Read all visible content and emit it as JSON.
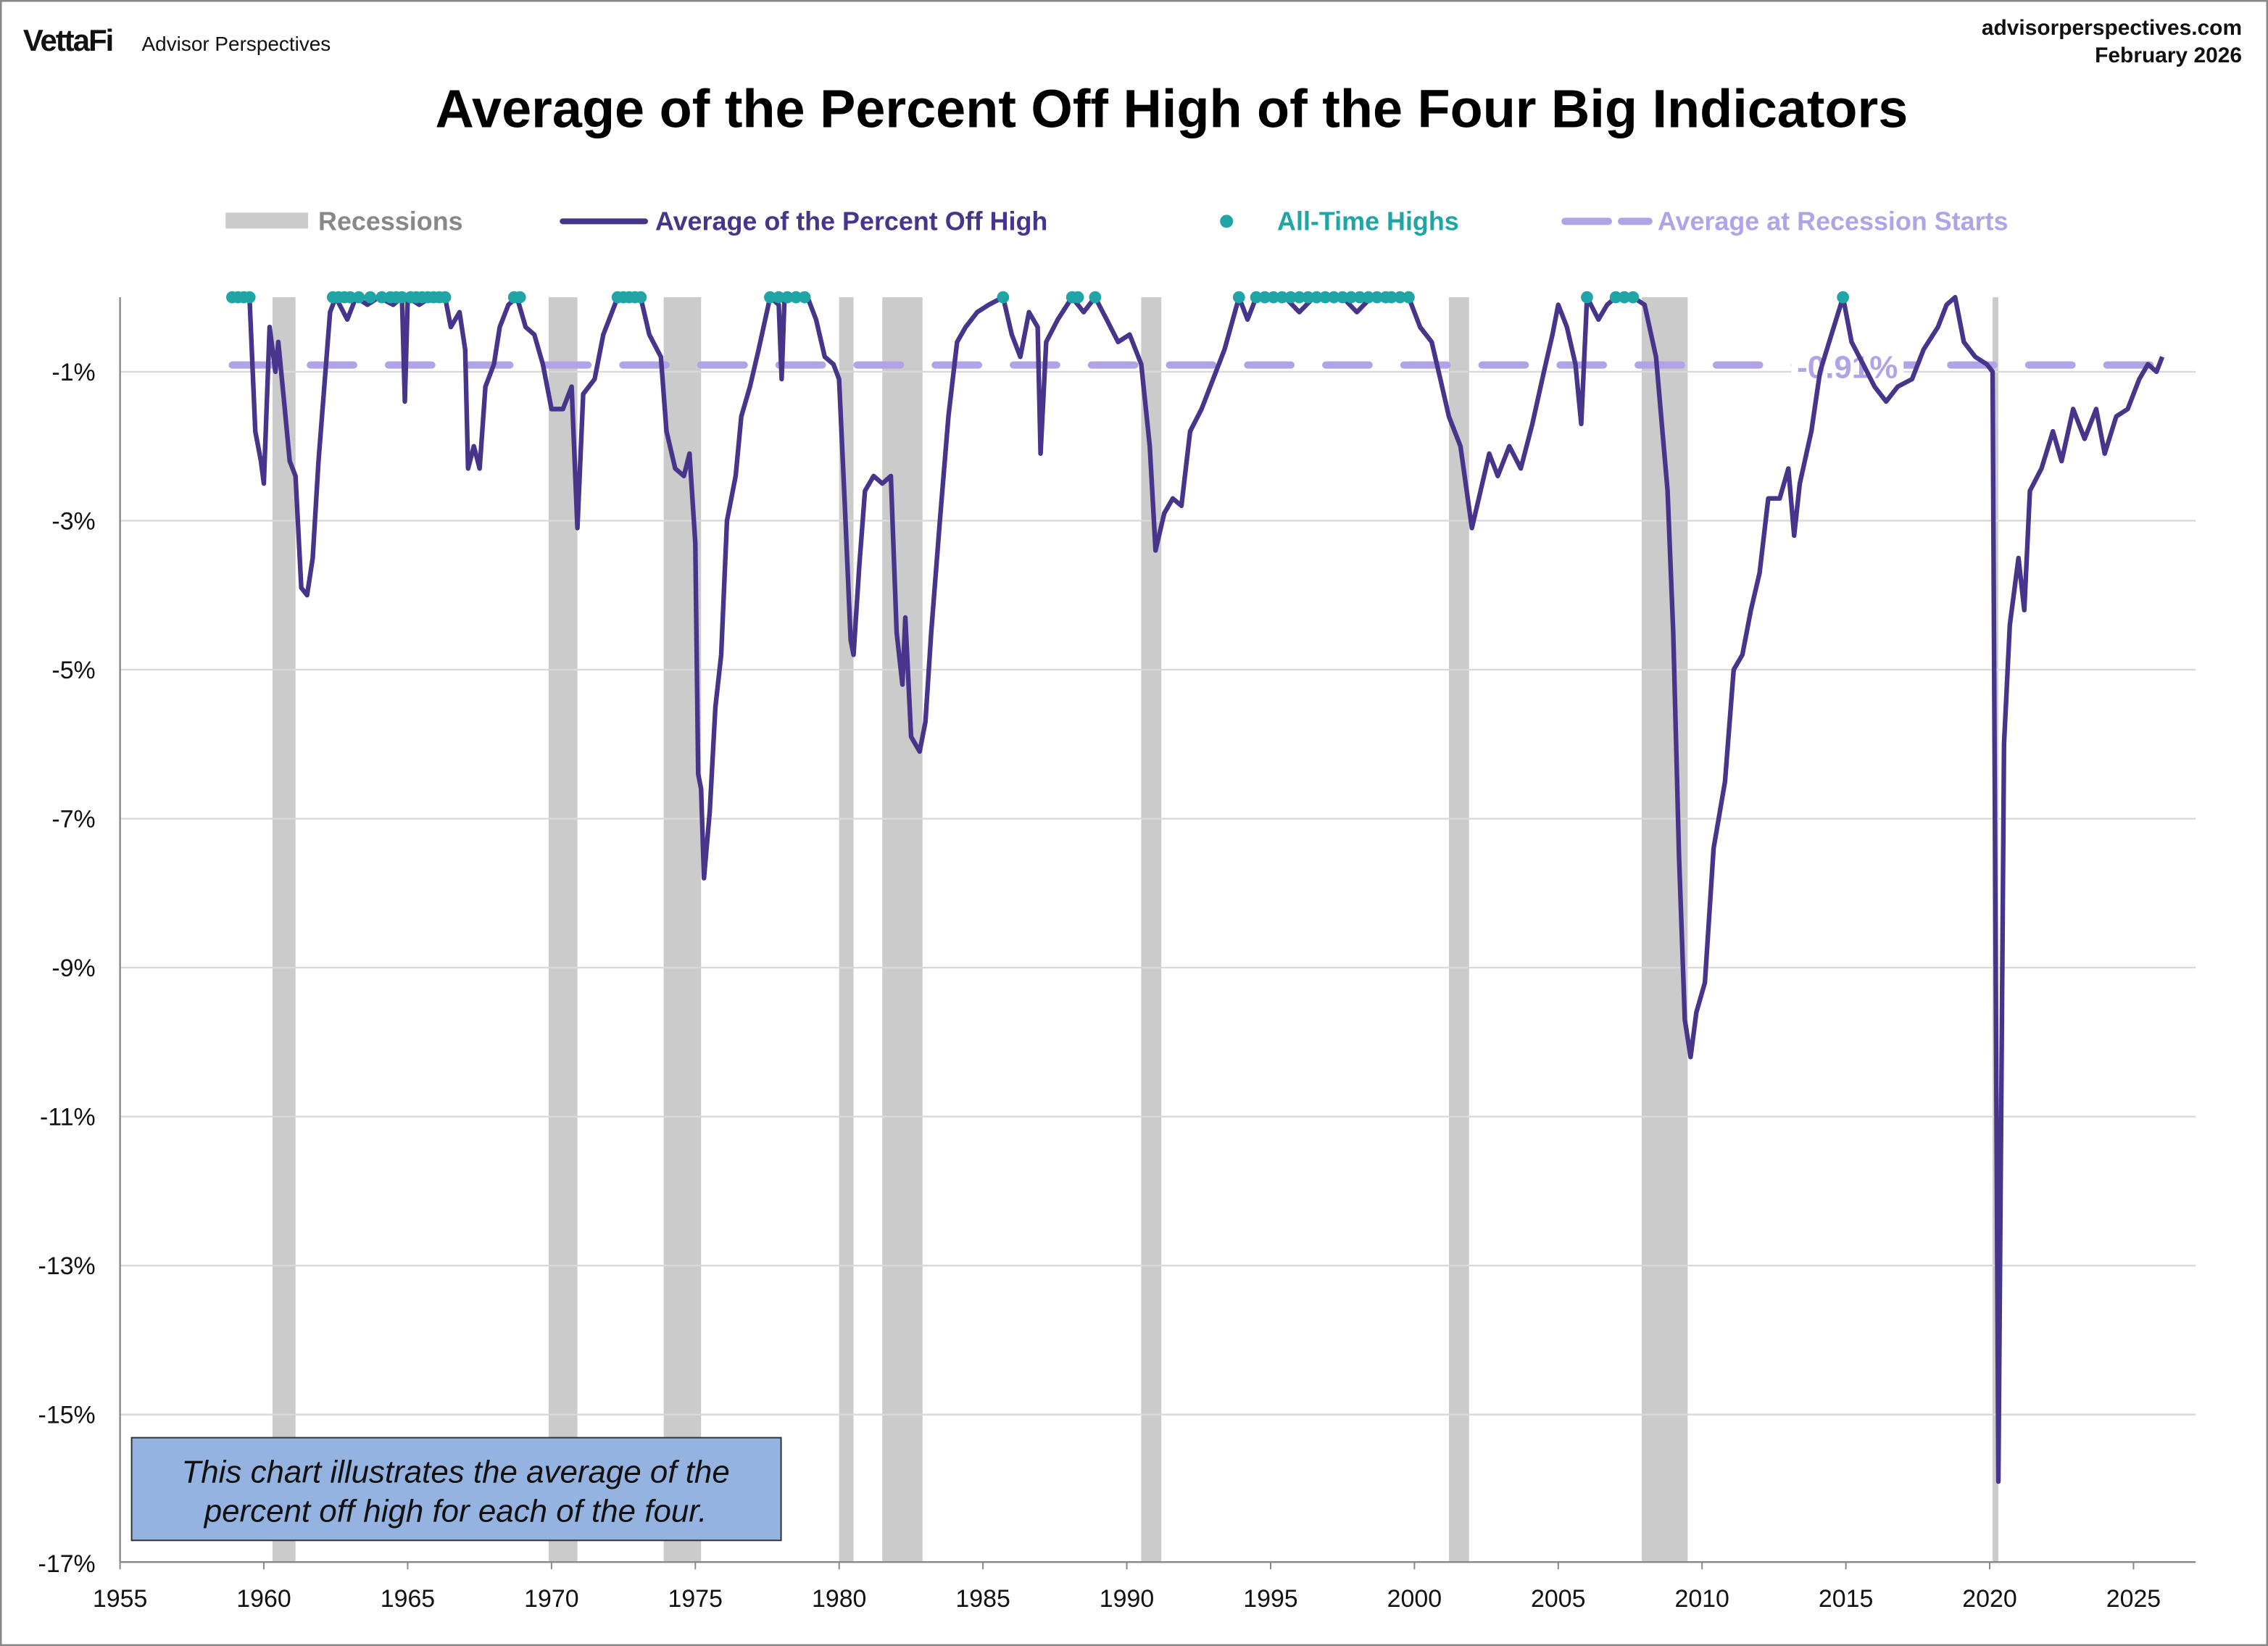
{
  "header": {
    "logo": "VettaFi",
    "brand": "Advisor Perspectives",
    "site": "advisorperspectives.com",
    "date": "February 2026"
  },
  "note": {
    "line1": "This chart illustrates the average of the",
    "line2": "percent off high for each of the four."
  },
  "chart_data": {
    "type": "line",
    "title": "Average of the Percent Off High of the Four Big Indicators",
    "xlabel": "",
    "ylabel": "",
    "xlim": [
      1955,
      2027.2
    ],
    "ylim": [
      -17,
      0
    ],
    "x_ticks": [
      "1955",
      "1960",
      "1965",
      "1970",
      "1975",
      "1980",
      "1985",
      "1990",
      "1995",
      "2000",
      "2005",
      "2010",
      "2015",
      "2020",
      "2025"
    ],
    "y_ticks": [
      "-1%",
      "-3%",
      "-5%",
      "-7%",
      "-9%",
      "-11%",
      "-13%",
      "-15%",
      "-17%"
    ],
    "grid": true,
    "legend_position": "top",
    "legend": {
      "recessions": "Recessions",
      "line": "Average of the Percent Off High",
      "ath": "All-Time Highs",
      "avg": "Average at Recession Starts"
    },
    "colors": {
      "line": "#46358a",
      "ath": "#1fa5a5",
      "avg": "#b0a4e6",
      "recession": "#cbcbcb",
      "note_bg": "#95b3e0"
    },
    "recessions": [
      [
        1960.3,
        1961.1
      ],
      [
        1969.9,
        1970.9
      ],
      [
        1973.9,
        1975.2
      ],
      [
        1980.0,
        1980.5
      ],
      [
        1981.5,
        1982.9
      ],
      [
        1990.5,
        1991.2
      ],
      [
        2001.2,
        2001.9
      ],
      [
        2007.9,
        2009.5
      ],
      [
        2020.1,
        2020.3
      ]
    ],
    "average_at_recession_starts": -0.91,
    "average_label": "-0.91%",
    "series": [
      {
        "name": "Average of the Percent Off High",
        "points": [
          [
            1958.9,
            0
          ],
          [
            1959.5,
            0
          ],
          [
            1959.7,
            -1.8
          ],
          [
            1959.9,
            -2.2
          ],
          [
            1960.0,
            -2.5
          ],
          [
            1960.2,
            -0.4
          ],
          [
            1960.4,
            -1.0
          ],
          [
            1960.5,
            -0.6
          ],
          [
            1960.7,
            -1.4
          ],
          [
            1960.9,
            -2.2
          ],
          [
            1961.1,
            -2.4
          ],
          [
            1961.3,
            -3.9
          ],
          [
            1961.5,
            -4.0
          ],
          [
            1961.7,
            -3.5
          ],
          [
            1961.9,
            -2.2
          ],
          [
            1962.1,
            -1.2
          ],
          [
            1962.3,
            -0.2
          ],
          [
            1962.5,
            0
          ],
          [
            1962.9,
            -0.3
          ],
          [
            1963.2,
            0
          ],
          [
            1963.6,
            -0.1
          ],
          [
            1964.0,
            0
          ],
          [
            1964.5,
            -0.1
          ],
          [
            1964.8,
            0
          ],
          [
            1964.9,
            -1.4
          ],
          [
            1965.0,
            0
          ],
          [
            1965.4,
            -0.1
          ],
          [
            1965.8,
            0
          ],
          [
            1966.3,
            0
          ],
          [
            1966.5,
            -0.4
          ],
          [
            1966.8,
            -0.2
          ],
          [
            1967.0,
            -0.7
          ],
          [
            1967.1,
            -2.3
          ],
          [
            1967.3,
            -2.0
          ],
          [
            1967.5,
            -2.3
          ],
          [
            1967.7,
            -1.2
          ],
          [
            1968.0,
            -0.9
          ],
          [
            1968.2,
            -0.4
          ],
          [
            1968.5,
            -0.1
          ],
          [
            1968.8,
            0
          ],
          [
            1969.1,
            -0.4
          ],
          [
            1969.4,
            -0.5
          ],
          [
            1969.7,
            -0.9
          ],
          [
            1970.0,
            -1.5
          ],
          [
            1970.4,
            -1.5
          ],
          [
            1970.7,
            -1.2
          ],
          [
            1970.9,
            -3.1
          ],
          [
            1971.1,
            -1.3
          ],
          [
            1971.5,
            -1.1
          ],
          [
            1971.8,
            -0.5
          ],
          [
            1972.1,
            -0.2
          ],
          [
            1972.3,
            0
          ],
          [
            1973.1,
            0
          ],
          [
            1973.4,
            -0.5
          ],
          [
            1973.8,
            -0.8
          ],
          [
            1974.0,
            -1.8
          ],
          [
            1974.3,
            -2.3
          ],
          [
            1974.6,
            -2.4
          ],
          [
            1974.8,
            -2.1
          ],
          [
            1975.0,
            -3.3
          ],
          [
            1975.1,
            -6.4
          ],
          [
            1975.2,
            -6.6
          ],
          [
            1975.3,
            -7.8
          ],
          [
            1975.5,
            -6.9
          ],
          [
            1975.7,
            -5.5
          ],
          [
            1975.9,
            -4.8
          ],
          [
            1976.1,
            -3.0
          ],
          [
            1976.4,
            -2.4
          ],
          [
            1976.6,
            -1.6
          ],
          [
            1976.9,
            -1.2
          ],
          [
            1977.2,
            -0.7
          ],
          [
            1977.6,
            0
          ],
          [
            1977.9,
            -0.1
          ],
          [
            1978.0,
            -1.1
          ],
          [
            1978.1,
            0
          ],
          [
            1978.9,
            0
          ],
          [
            1979.2,
            -0.3
          ],
          [
            1979.5,
            -0.8
          ],
          [
            1979.8,
            -0.9
          ],
          [
            1980.0,
            -1.1
          ],
          [
            1980.2,
            -2.8
          ],
          [
            1980.4,
            -4.6
          ],
          [
            1980.5,
            -4.8
          ],
          [
            1980.7,
            -3.6
          ],
          [
            1980.9,
            -2.6
          ],
          [
            1981.2,
            -2.4
          ],
          [
            1981.5,
            -2.5
          ],
          [
            1981.8,
            -2.4
          ],
          [
            1982.0,
            -4.5
          ],
          [
            1982.2,
            -5.2
          ],
          [
            1982.3,
            -4.3
          ],
          [
            1982.5,
            -5.9
          ],
          [
            1982.8,
            -6.1
          ],
          [
            1983.0,
            -5.7
          ],
          [
            1983.2,
            -4.5
          ],
          [
            1983.5,
            -3.0
          ],
          [
            1983.8,
            -1.6
          ],
          [
            1984.1,
            -0.6
          ],
          [
            1984.4,
            -0.4
          ],
          [
            1984.8,
            -0.2
          ],
          [
            1985.2,
            -0.1
          ],
          [
            1985.7,
            0
          ],
          [
            1986.0,
            -0.5
          ],
          [
            1986.3,
            -0.8
          ],
          [
            1986.6,
            -0.2
          ],
          [
            1986.9,
            -0.4
          ],
          [
            1987.0,
            -2.1
          ],
          [
            1987.2,
            -0.6
          ],
          [
            1987.6,
            -0.3
          ],
          [
            1988.1,
            0
          ],
          [
            1988.5,
            -0.2
          ],
          [
            1988.9,
            0
          ],
          [
            1989.3,
            -0.3
          ],
          [
            1989.7,
            -0.6
          ],
          [
            1990.1,
            -0.5
          ],
          [
            1990.5,
            -0.9
          ],
          [
            1990.8,
            -2.0
          ],
          [
            1991.0,
            -3.4
          ],
          [
            1991.3,
            -2.9
          ],
          [
            1991.6,
            -2.7
          ],
          [
            1991.9,
            -2.8
          ],
          [
            1992.2,
            -1.8
          ],
          [
            1992.6,
            -1.5
          ],
          [
            1993.0,
            -1.1
          ],
          [
            1993.4,
            -0.7
          ],
          [
            1993.9,
            0
          ],
          [
            1994.2,
            -0.3
          ],
          [
            1994.5,
            0
          ],
          [
            1995.5,
            0
          ],
          [
            1996.0,
            -0.2
          ],
          [
            1996.5,
            0
          ],
          [
            1997.5,
            0
          ],
          [
            1998.0,
            -0.2
          ],
          [
            1998.5,
            0
          ],
          [
            1999.8,
            0
          ],
          [
            2000.2,
            -0.4
          ],
          [
            2000.6,
            -0.6
          ],
          [
            2000.9,
            -1.1
          ],
          [
            2001.2,
            -1.6
          ],
          [
            2001.6,
            -2.0
          ],
          [
            2002.0,
            -3.1
          ],
          [
            2002.3,
            -2.6
          ],
          [
            2002.6,
            -2.1
          ],
          [
            2002.9,
            -2.4
          ],
          [
            2003.3,
            -2.0
          ],
          [
            2003.7,
            -2.3
          ],
          [
            2004.1,
            -1.7
          ],
          [
            2004.5,
            -1.0
          ],
          [
            2004.8,
            -0.5
          ],
          [
            2005.0,
            -0.1
          ],
          [
            2005.3,
            -0.4
          ],
          [
            2005.6,
            -0.9
          ],
          [
            2005.8,
            -1.7
          ],
          [
            2006.0,
            0
          ],
          [
            2006.4,
            -0.3
          ],
          [
            2006.7,
            -0.1
          ],
          [
            2007.0,
            0
          ],
          [
            2007.6,
            0
          ],
          [
            2008.0,
            -0.1
          ],
          [
            2008.4,
            -0.8
          ],
          [
            2008.8,
            -2.6
          ],
          [
            2009.0,
            -4.5
          ],
          [
            2009.2,
            -7.5
          ],
          [
            2009.4,
            -9.7
          ],
          [
            2009.6,
            -10.2
          ],
          [
            2009.8,
            -9.6
          ],
          [
            2010.1,
            -9.2
          ],
          [
            2010.4,
            -7.4
          ],
          [
            2010.8,
            -6.5
          ],
          [
            2011.1,
            -5.0
          ],
          [
            2011.4,
            -4.8
          ],
          [
            2011.7,
            -4.2
          ],
          [
            2012.0,
            -3.7
          ],
          [
            2012.3,
            -2.7
          ],
          [
            2012.7,
            -2.7
          ],
          [
            2013.0,
            -2.3
          ],
          [
            2013.2,
            -3.2
          ],
          [
            2013.4,
            -2.5
          ],
          [
            2013.8,
            -1.8
          ],
          [
            2014.1,
            -1.0
          ],
          [
            2014.5,
            -0.5
          ],
          [
            2014.9,
            0
          ],
          [
            2015.2,
            -0.6
          ],
          [
            2015.6,
            -0.9
          ],
          [
            2016.0,
            -1.2
          ],
          [
            2016.4,
            -1.4
          ],
          [
            2016.8,
            -1.2
          ],
          [
            2017.3,
            -1.1
          ],
          [
            2017.7,
            -0.7
          ],
          [
            2018.2,
            -0.4
          ],
          [
            2018.5,
            -0.1
          ],
          [
            2018.8,
            0
          ],
          [
            2019.1,
            -0.6
          ],
          [
            2019.5,
            -0.8
          ],
          [
            2019.9,
            -0.9
          ],
          [
            2020.1,
            -1.0
          ],
          [
            2020.3,
            -15.9
          ],
          [
            2020.5,
            -6.0
          ],
          [
            2020.7,
            -4.4
          ],
          [
            2021.0,
            -3.5
          ],
          [
            2021.2,
            -4.2
          ],
          [
            2021.4,
            -2.6
          ],
          [
            2021.8,
            -2.3
          ],
          [
            2022.2,
            -1.8
          ],
          [
            2022.5,
            -2.2
          ],
          [
            2022.9,
            -1.5
          ],
          [
            2023.3,
            -1.9
          ],
          [
            2023.7,
            -1.5
          ],
          [
            2024.0,
            -2.1
          ],
          [
            2024.4,
            -1.6
          ],
          [
            2024.8,
            -1.5
          ],
          [
            2025.2,
            -1.1
          ],
          [
            2025.5,
            -0.9
          ],
          [
            2025.8,
            -1.0
          ],
          [
            2026.0,
            -0.8
          ]
        ]
      }
    ],
    "all_time_highs": [
      1958.9,
      1959.1,
      1959.3,
      1959.5,
      1962.4,
      1962.6,
      1962.8,
      1963.0,
      1963.3,
      1963.7,
      1964.1,
      1964.4,
      1964.6,
      1964.8,
      1965.1,
      1965.3,
      1965.5,
      1965.7,
      1965.9,
      1966.1,
      1966.3,
      1968.7,
      1968.9,
      1972.3,
      1972.5,
      1972.7,
      1972.9,
      1973.1,
      1977.6,
      1977.9,
      1978.2,
      1978.5,
      1978.8,
      1985.7,
      1988.1,
      1988.3,
      1988.9,
      1993.9,
      1994.5,
      1994.8,
      1995.1,
      1995.4,
      1995.7,
      1996.0,
      1996.3,
      1996.6,
      1996.9,
      1997.2,
      1997.5,
      1997.8,
      1998.1,
      1998.4,
      1998.7,
      1999.0,
      1999.2,
      1999.5,
      1999.8,
      2006.0,
      2007.0,
      2007.3,
      2007.6,
      2014.9
    ]
  }
}
